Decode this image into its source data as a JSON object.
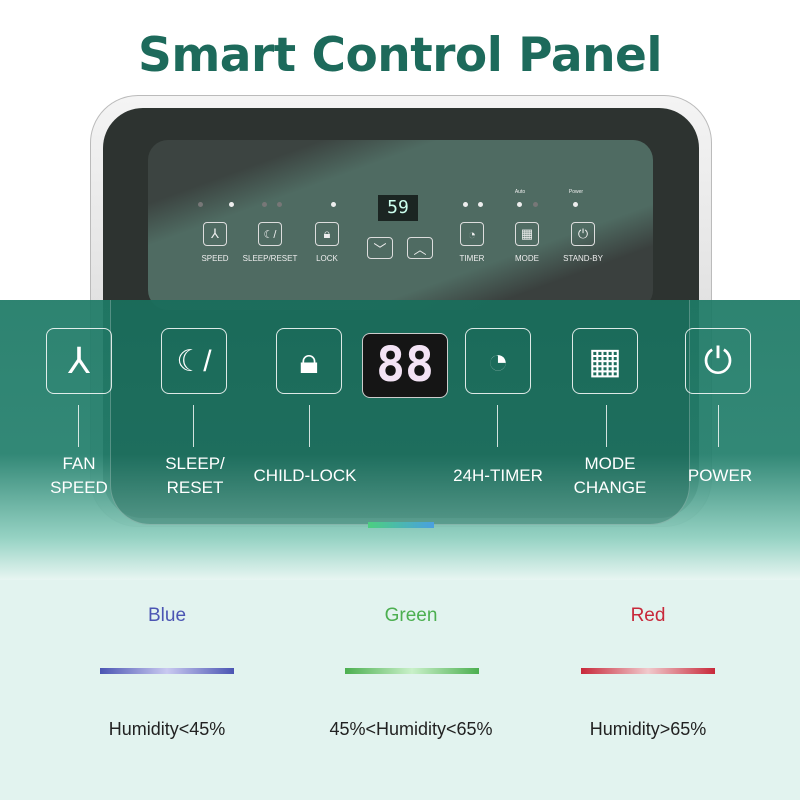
{
  "title": "Smart Control Panel",
  "device_panel": {
    "display": "59",
    "indicators": [
      "Auto",
      "Power"
    ],
    "buttons": [
      {
        "label": "SPEED",
        "icon": "fan-icon"
      },
      {
        "label": "SLEEP/RESET",
        "icon": "sleep-reset-icon"
      },
      {
        "label": "LOCK",
        "icon": "lock-icon"
      },
      {
        "label": "TIMER",
        "icon": "timer-icon"
      },
      {
        "label": "MODE",
        "icon": "mode-grid-icon"
      },
      {
        "label": "STAND-BY",
        "icon": "power-icon"
      }
    ],
    "arrows": [
      "chevron-down-icon",
      "chevron-up-icon"
    ]
  },
  "callouts": {
    "display": "88",
    "items": [
      {
        "line1": "FAN",
        "line2": "SPEED"
      },
      {
        "line1": "SLEEP/",
        "line2": "RESET"
      },
      {
        "line1": "CHILD-LOCK",
        "line2": ""
      },
      {
        "line1": "24H-TIMER",
        "line2": ""
      },
      {
        "line1": "MODE",
        "line2": "CHANGE"
      },
      {
        "line1": "POWER",
        "line2": ""
      }
    ]
  },
  "humidity_legend": [
    {
      "color_name": "Blue",
      "color": "#4b55b3",
      "range": "Humidity<45%"
    },
    {
      "color_name": "Green",
      "color": "#4caf50",
      "range": "45%<Humidity<65%"
    },
    {
      "color_name": "Red",
      "color": "#c8283a",
      "range": "Humidity>65%"
    }
  ]
}
